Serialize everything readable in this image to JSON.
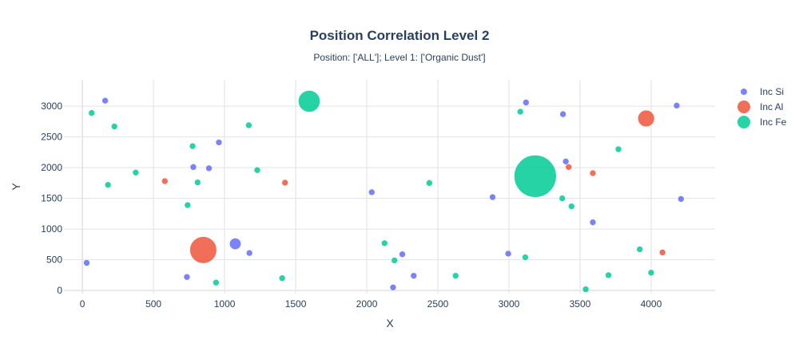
{
  "chart_data": {
    "type": "scatter",
    "title": "Position Correlation Level 2",
    "subtitle": "Position: ['ALL']; Level 1: ['Organic Dust']",
    "xlabel": "X",
    "ylabel": "Y",
    "xlim": [
      -130,
      4450
    ],
    "ylim": [
      -50,
      3430
    ],
    "xticks": [
      0,
      500,
      1000,
      1500,
      2000,
      2500,
      3000,
      3500,
      4000
    ],
    "yticks": [
      0,
      500,
      1000,
      1500,
      2000,
      2500,
      3000
    ],
    "grid": true,
    "legend_position": "top-right",
    "series": [
      {
        "name": "Inc Si",
        "color": "#636efa",
        "points": [
          {
            "x": 160,
            "y": 3090,
            "size": 1
          },
          {
            "x": 30,
            "y": 450,
            "size": 1
          },
          {
            "x": 780,
            "y": 2010,
            "size": 1
          },
          {
            "x": 890,
            "y": 1990,
            "size": 1
          },
          {
            "x": 960,
            "y": 2410,
            "size": 1
          },
          {
            "x": 1075,
            "y": 760,
            "size": 2
          },
          {
            "x": 1175,
            "y": 610,
            "size": 1
          },
          {
            "x": 735,
            "y": 220,
            "size": 1
          },
          {
            "x": 2035,
            "y": 1600,
            "size": 1
          },
          {
            "x": 2250,
            "y": 590,
            "size": 1
          },
          {
            "x": 2330,
            "y": 240,
            "size": 1
          },
          {
            "x": 2185,
            "y": 50,
            "size": 1
          },
          {
            "x": 2885,
            "y": 1520,
            "size": 1
          },
          {
            "x": 2995,
            "y": 600,
            "size": 1
          },
          {
            "x": 3120,
            "y": 3060,
            "size": 1
          },
          {
            "x": 3380,
            "y": 2870,
            "size": 1
          },
          {
            "x": 3400,
            "y": 2100,
            "size": 1
          },
          {
            "x": 3590,
            "y": 1110,
            "size": 1
          },
          {
            "x": 4180,
            "y": 3010,
            "size": 1
          },
          {
            "x": 4210,
            "y": 1490,
            "size": 1
          }
        ]
      },
      {
        "name": "Inc Al",
        "color": "#ef553b",
        "points": [
          {
            "x": 580,
            "y": 1780,
            "size": 1
          },
          {
            "x": 850,
            "y": 660,
            "size": 5
          },
          {
            "x": 1425,
            "y": 1755,
            "size": 1
          },
          {
            "x": 3420,
            "y": 2010,
            "size": 1
          },
          {
            "x": 3590,
            "y": 1910,
            "size": 1
          },
          {
            "x": 3965,
            "y": 2800,
            "size": 3
          },
          {
            "x": 4080,
            "y": 620,
            "size": 1
          }
        ]
      },
      {
        "name": "Inc Fe",
        "color": "#00cc96",
        "points": [
          {
            "x": 65,
            "y": 2890,
            "size": 1
          },
          {
            "x": 225,
            "y": 2670,
            "size": 1
          },
          {
            "x": 180,
            "y": 1720,
            "size": 1
          },
          {
            "x": 375,
            "y": 1920,
            "size": 1
          },
          {
            "x": 775,
            "y": 2350,
            "size": 1
          },
          {
            "x": 810,
            "y": 1760,
            "size": 1
          },
          {
            "x": 740,
            "y": 1390,
            "size": 1
          },
          {
            "x": 940,
            "y": 130,
            "size": 1
          },
          {
            "x": 1170,
            "y": 2690,
            "size": 1
          },
          {
            "x": 1230,
            "y": 1960,
            "size": 1
          },
          {
            "x": 1405,
            "y": 200,
            "size": 1
          },
          {
            "x": 1595,
            "y": 3080,
            "size": 4
          },
          {
            "x": 2440,
            "y": 1750,
            "size": 1
          },
          {
            "x": 2125,
            "y": 770,
            "size": 1
          },
          {
            "x": 2195,
            "y": 490,
            "size": 1
          },
          {
            "x": 2625,
            "y": 240,
            "size": 1
          },
          {
            "x": 3080,
            "y": 2910,
            "size": 1
          },
          {
            "x": 3185,
            "y": 1860,
            "size": 8
          },
          {
            "x": 3375,
            "y": 1500,
            "size": 1
          },
          {
            "x": 3440,
            "y": 1370,
            "size": 1
          },
          {
            "x": 3115,
            "y": 540,
            "size": 1
          },
          {
            "x": 3540,
            "y": 20,
            "size": 1
          },
          {
            "x": 3700,
            "y": 250,
            "size": 1
          },
          {
            "x": 3770,
            "y": 2300,
            "size": 1
          },
          {
            "x": 3920,
            "y": 670,
            "size": 1
          },
          {
            "x": 4000,
            "y": 290,
            "size": 1
          }
        ]
      }
    ]
  }
}
